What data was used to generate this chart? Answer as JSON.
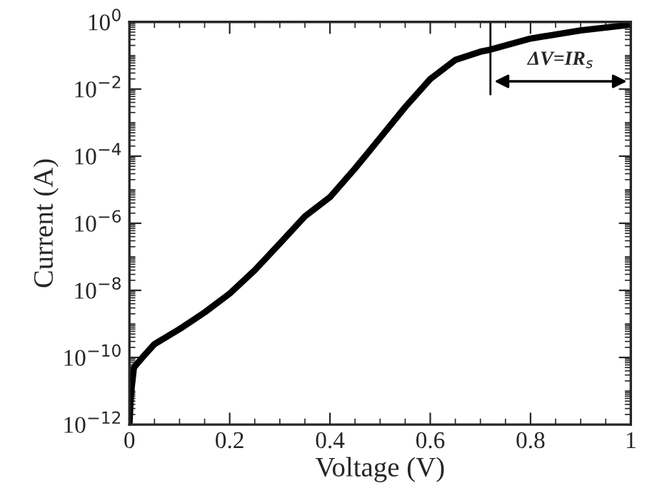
{
  "chart_data": {
    "type": "line",
    "xlabel": "Voltage (V)",
    "ylabel": "Current (A)",
    "log": true,
    "grid": false,
    "legend": false,
    "marker": "none",
    "line_style": "solid",
    "x": [
      0,
      0.003,
      0.009,
      0.026,
      0.05,
      0.1,
      0.15,
      0.2,
      0.25,
      0.3,
      0.35,
      0.4,
      0.45,
      0.5,
      0.55,
      0.6,
      0.65,
      0.7,
      0.72,
      0.8,
      0.9,
      1.0
    ],
    "series": [
      {
        "color": "#000000",
        "values": [
          1e-12,
          8e-12,
          5e-11,
          1e-10,
          2.5e-10,
          7e-10,
          2.2e-09,
          8e-09,
          4e-08,
          2.5e-07,
          1.6e-06,
          6e-06,
          4.3e-05,
          0.00035,
          0.0029,
          0.02,
          0.074,
          0.13,
          0.15,
          0.32,
          0.56,
          0.83
        ]
      }
    ],
    "xlim": [
      0,
      1
    ],
    "xticks": [
      0,
      0.2,
      0.4,
      0.6,
      0.8,
      1
    ],
    "ylim": [
      1e-12,
      1
    ],
    "yticks": [
      {
        "value": 1e-12,
        "label": "10$^{−12}$"
      },
      {
        "value": 1e-10,
        "label": "10$^{−10}$"
      },
      {
        "value": 1e-08,
        "label": "10$^{−8}$"
      },
      {
        "value": 1e-06,
        "label": "10$^{−6}$"
      },
      {
        "value": 0.0001,
        "label": "10$^{−4}$"
      },
      {
        "value": 0.01,
        "label": "10$^{−2}$"
      },
      {
        "value": 1,
        "label": "10$^{0}$"
      }
    ],
    "ref_lines": [
      {
        "axis": "x",
        "value": 0.72
      }
    ],
    "annotations": [
      "ΔV=IR$_{s}$"
    ]
  }
}
